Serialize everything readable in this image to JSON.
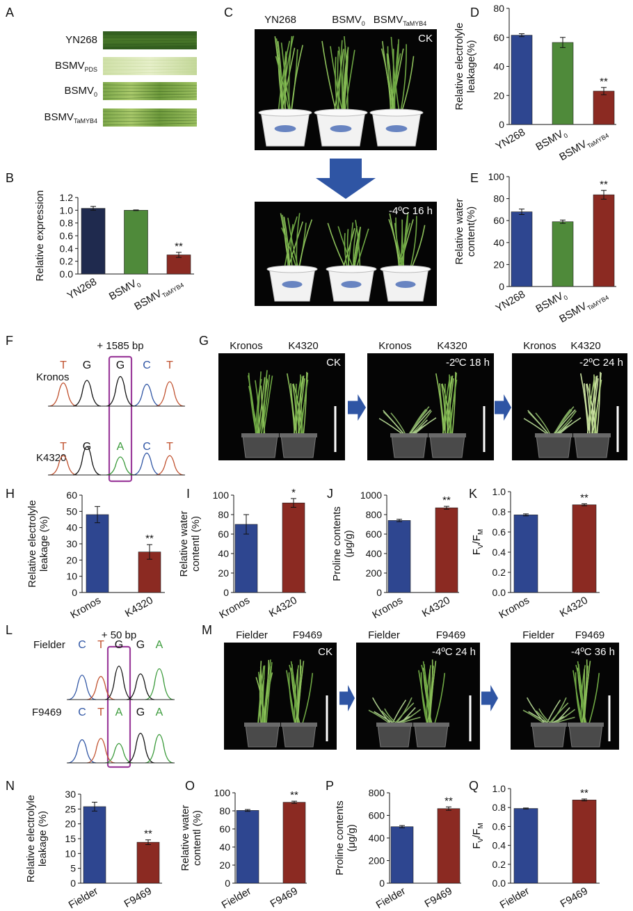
{
  "colors": {
    "navy": "#1F2A4E",
    "blue": "#2E4690",
    "green": "#4F8A3A",
    "red": "#8B2A22",
    "photo_bg": "#050505",
    "arrow": "#2F55A4",
    "highlight": "#9B3C9B",
    "base_T": "#C0502D",
    "base_G": "#111111",
    "base_A": "#3A9A3A",
    "base_C": "#2F55A4"
  },
  "panel_letters": {
    "A": "A",
    "B": "B",
    "C": "C",
    "D": "D",
    "E": "E",
    "F": "F",
    "G": "G",
    "H": "H",
    "I": "I",
    "J": "J",
    "K": "K",
    "L": "L",
    "M": "M",
    "N": "N",
    "O": "O",
    "P": "P",
    "Q": "Q"
  },
  "panel_A": {
    "leaves": [
      {
        "label": "YN268",
        "sub": ""
      },
      {
        "label": "BSMV",
        "sub": "PDS"
      },
      {
        "label": "BSMV",
        "sub": "0"
      },
      {
        "label": "BSMV",
        "sub": "TaMYB4"
      }
    ]
  },
  "panel_C": {
    "lines": [
      {
        "label": "YN268",
        "sub": ""
      },
      {
        "label": "BSMV",
        "sub": "0"
      },
      {
        "label": "BSMV",
        "sub": "TaMYB4"
      }
    ],
    "top_tag": "CK",
    "bottom_tag": "-4ºC 16 h"
  },
  "panel_F": {
    "position": "+ 1585 bp",
    "rows": [
      {
        "name": "Kronos",
        "bases": [
          "T",
          "G",
          "G",
          "C",
          "T"
        ]
      },
      {
        "name": "K4320",
        "bases": [
          "T",
          "G",
          "A",
          "C",
          "T"
        ]
      }
    ]
  },
  "panel_G": {
    "photos": [
      {
        "left": "Kronos",
        "right": "K4320",
        "tag": "CK"
      },
      {
        "left": "Kronos",
        "right": "K4320",
        "tag": "-2ºC 18 h"
      },
      {
        "left": "Kronos",
        "right": "K4320",
        "tag": "-2ºC 24 h"
      }
    ]
  },
  "panel_L": {
    "position": "+ 50 bp",
    "rows": [
      {
        "name": "Fielder",
        "bases": [
          "C",
          "T",
          "G",
          "G",
          "A"
        ]
      },
      {
        "name": "F9469",
        "bases": [
          "C",
          "T",
          "A",
          "G",
          "A"
        ]
      }
    ]
  },
  "panel_M": {
    "photos": [
      {
        "left": "Fielder",
        "right": "F9469",
        "tag": "CK"
      },
      {
        "left": "Fielder",
        "right": "F9469",
        "tag": "-4ºC 24 h"
      },
      {
        "left": "Fielder",
        "right": "F9469",
        "tag": "-4ºC 36 h"
      }
    ]
  },
  "chart_data": [
    {
      "panel": "B",
      "type": "bar",
      "categories": [
        {
          "text": "YN268",
          "sub": ""
        },
        {
          "text": "BSMV",
          "sub": "0"
        },
        {
          "text": "BSMV",
          "sub": "TaMYB4"
        }
      ],
      "values": [
        1.03,
        1.0,
        0.3
      ],
      "errors": [
        0.03,
        0.005,
        0.04
      ],
      "colors": [
        "#1F2A4E",
        "#4F8A3A",
        "#8B2A22"
      ],
      "significance": [
        "",
        "",
        "**"
      ],
      "ylabel": [
        "Relative expression"
      ],
      "ylim": [
        0,
        1.2
      ],
      "yticks": [
        "0.0",
        "0.2",
        "0.4",
        "0.6",
        "0.8",
        "1.0",
        "1.2"
      ]
    },
    {
      "panel": "D",
      "type": "bar",
      "categories": [
        {
          "text": "YN268",
          "sub": ""
        },
        {
          "text": "BSMV",
          "sub": "0"
        },
        {
          "text": "BSMV",
          "sub": "TaMYB4"
        }
      ],
      "values": [
        61.5,
        56.5,
        23
      ],
      "errors": [
        1,
        3.5,
        2.5
      ],
      "colors": [
        "#2E4690",
        "#4F8A3A",
        "#8B2A22"
      ],
      "significance": [
        "",
        "",
        "**"
      ],
      "ylabel": [
        "Relative electrolyle",
        "leakage(%)"
      ],
      "ylim": [
        0,
        80
      ],
      "yticks": [
        "0",
        "20",
        "40",
        "60",
        "80"
      ]
    },
    {
      "panel": "E",
      "type": "bar",
      "categories": [
        {
          "text": "YN268",
          "sub": ""
        },
        {
          "text": "BSMV",
          "sub": "0"
        },
        {
          "text": "BSMV",
          "sub": "TaMYB4"
        }
      ],
      "values": [
        68,
        59,
        83.5
      ],
      "errors": [
        2.5,
        1.5,
        4
      ],
      "colors": [
        "#2E4690",
        "#4F8A3A",
        "#8B2A22"
      ],
      "significance": [
        "",
        "",
        "**"
      ],
      "ylabel": [
        "Relative water",
        "content(%)"
      ],
      "ylim": [
        0,
        100
      ],
      "yticks": [
        "0",
        "20",
        "40",
        "60",
        "80",
        "100"
      ]
    },
    {
      "panel": "H",
      "type": "bar",
      "categories": [
        {
          "text": "Kronos",
          "sub": ""
        },
        {
          "text": "K4320",
          "sub": ""
        }
      ],
      "values": [
        48,
        25
      ],
      "errors": [
        5,
        4.5
      ],
      "colors": [
        "#2E4690",
        "#8B2A22"
      ],
      "significance": [
        "",
        "**"
      ],
      "ylabel": [
        "Relative electrolyle",
        "leakage (%)"
      ],
      "ylim": [
        0,
        60
      ],
      "yticks": [
        "0",
        "10",
        "20",
        "30",
        "40",
        "50",
        "60"
      ]
    },
    {
      "panel": "I",
      "type": "bar",
      "categories": [
        {
          "text": "Kronos",
          "sub": ""
        },
        {
          "text": "K4320",
          "sub": ""
        }
      ],
      "values": [
        70,
        92
      ],
      "errors": [
        10,
        4.5
      ],
      "colors": [
        "#2E4690",
        "#8B2A22"
      ],
      "significance": [
        "",
        "*"
      ],
      "ylabel": [
        "Relative water",
        "contentl (%)"
      ],
      "ylim": [
        0,
        100
      ],
      "yticks": [
        "0",
        "20",
        "40",
        "60",
        "80",
        "100"
      ]
    },
    {
      "panel": "J",
      "type": "bar",
      "categories": [
        {
          "text": "Kronos",
          "sub": ""
        },
        {
          "text": "K4320",
          "sub": ""
        }
      ],
      "values": [
        740,
        870
      ],
      "errors": [
        12,
        15
      ],
      "colors": [
        "#2E4690",
        "#8B2A22"
      ],
      "significance": [
        "",
        "**"
      ],
      "ylabel": [
        "Proline contents",
        "(μg/g)"
      ],
      "ylim": [
        0,
        1000
      ],
      "yticks": [
        "0",
        "200",
        "400",
        "600",
        "800",
        "1000"
      ]
    },
    {
      "panel": "K",
      "type": "bar",
      "categories": [
        {
          "text": "Kronos",
          "sub": ""
        },
        {
          "text": "K4320",
          "sub": ""
        }
      ],
      "values": [
        0.77,
        0.87
      ],
      "errors": [
        0.01,
        0.01
      ],
      "colors": [
        "#2E4690",
        "#8B2A22"
      ],
      "significance": [
        "",
        "**"
      ],
      "ylabel": [
        "Fv/Fm"
      ],
      "ylim": [
        0,
        1.0
      ],
      "yticks": [
        "0.0",
        "0.2",
        "0.4",
        "0.6",
        "0.8",
        "1.0"
      ]
    },
    {
      "panel": "N",
      "type": "bar",
      "categories": [
        {
          "text": "Fielder",
          "sub": ""
        },
        {
          "text": "F9469",
          "sub": ""
        }
      ],
      "values": [
        25.8,
        13.8
      ],
      "errors": [
        1.5,
        0.8
      ],
      "colors": [
        "#2E4690",
        "#8B2A22"
      ],
      "significance": [
        "",
        "**"
      ],
      "ylabel": [
        "Relative electrolyle",
        "leakage (%)"
      ],
      "ylim": [
        0,
        30
      ],
      "yticks": [
        "0",
        "5",
        "10",
        "15",
        "20",
        "25",
        "30"
      ]
    },
    {
      "panel": "O",
      "type": "bar",
      "categories": [
        {
          "text": "Fielder",
          "sub": ""
        },
        {
          "text": "F9469",
          "sub": ""
        }
      ],
      "values": [
        80.5,
        89.5
      ],
      "errors": [
        1,
        1.2
      ],
      "colors": [
        "#2E4690",
        "#8B2A22"
      ],
      "significance": [
        "",
        "**"
      ],
      "ylabel": [
        "Relative water",
        "contentl (%)"
      ],
      "ylim": [
        0,
        100
      ],
      "yticks": [
        "0",
        "20",
        "40",
        "60",
        "80",
        "100"
      ]
    },
    {
      "panel": "P",
      "type": "bar",
      "categories": [
        {
          "text": "Fielder",
          "sub": ""
        },
        {
          "text": "F9469",
          "sub": ""
        }
      ],
      "values": [
        500,
        660
      ],
      "errors": [
        10,
        15
      ],
      "colors": [
        "#2E4690",
        "#8B2A22"
      ],
      "significance": [
        "",
        "**"
      ],
      "ylabel": [
        "Proline contents",
        "(μg/g)"
      ],
      "ylim": [
        0,
        800
      ],
      "yticks": [
        "0",
        "200",
        "400",
        "600",
        "800"
      ]
    },
    {
      "panel": "Q",
      "type": "bar",
      "categories": [
        {
          "text": "Fielder",
          "sub": ""
        },
        {
          "text": "F9469",
          "sub": ""
        }
      ],
      "values": [
        0.79,
        0.88
      ],
      "errors": [
        0.005,
        0.01
      ],
      "colors": [
        "#2E4690",
        "#8B2A22"
      ],
      "significance": [
        "",
        "**"
      ],
      "ylabel": [
        "Fv/Fm"
      ],
      "ylim": [
        0,
        1.0
      ],
      "yticks": [
        "0.0",
        "0.2",
        "0.4",
        "0.6",
        "0.8",
        "1.0"
      ]
    }
  ]
}
